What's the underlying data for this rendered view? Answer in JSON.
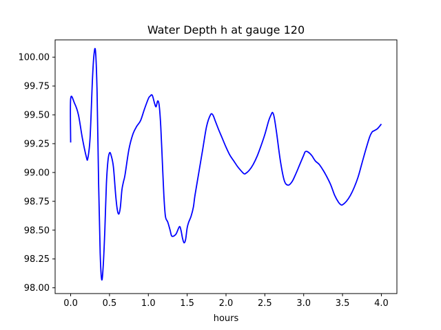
{
  "chart_data": {
    "type": "line",
    "title": "Water Depth h at gauge 120",
    "xlabel": "hours",
    "ylabel": "",
    "xlim": [
      -0.2,
      4.2
    ],
    "ylim": [
      97.95,
      100.15
    ],
    "xticks": [
      0.0,
      0.5,
      1.0,
      1.5,
      2.0,
      2.5,
      3.0,
      3.5,
      4.0
    ],
    "xtick_labels": [
      "0.0",
      "0.5",
      "1.0",
      "1.5",
      "2.0",
      "2.5",
      "3.0",
      "3.5",
      "4.0"
    ],
    "yticks": [
      98.0,
      98.25,
      98.5,
      98.75,
      99.0,
      99.25,
      99.5,
      99.75,
      100.0
    ],
    "ytick_labels": [
      "98.00",
      "98.25",
      "98.50",
      "98.75",
      "99.00",
      "99.25",
      "99.50",
      "99.75",
      "100.00"
    ],
    "grid": false,
    "series": [
      {
        "color": "#0000ff",
        "x": [
          0.0,
          0.0,
          0.05,
          0.1,
          0.15,
          0.2,
          0.22,
          0.25,
          0.28,
          0.3,
          0.32,
          0.34,
          0.36,
          0.38,
          0.4,
          0.42,
          0.44,
          0.46,
          0.48,
          0.5,
          0.52,
          0.55,
          0.58,
          0.6,
          0.62,
          0.64,
          0.66,
          0.68,
          0.7,
          0.75,
          0.8,
          0.85,
          0.9,
          0.95,
          1.0,
          1.02,
          1.05,
          1.08,
          1.1,
          1.12,
          1.14,
          1.16,
          1.18,
          1.2,
          1.22,
          1.25,
          1.28,
          1.3,
          1.33,
          1.36,
          1.4,
          1.42,
          1.44,
          1.46,
          1.48,
          1.5,
          1.52,
          1.55,
          1.58,
          1.6,
          1.65,
          1.7,
          1.75,
          1.8,
          1.83,
          1.86,
          1.9,
          1.95,
          2.0,
          2.05,
          2.1,
          2.15,
          2.2,
          2.23,
          2.25,
          2.3,
          2.35,
          2.4,
          2.45,
          2.5,
          2.55,
          2.58,
          2.6,
          2.62,
          2.65,
          2.7,
          2.75,
          2.8,
          2.85,
          2.9,
          2.95,
          3.0,
          3.02,
          3.05,
          3.1,
          3.15,
          3.2,
          3.25,
          3.3,
          3.35,
          3.4,
          3.45,
          3.48,
          3.5,
          3.55,
          3.6,
          3.65,
          3.7,
          3.75,
          3.8,
          3.85,
          3.88,
          3.9,
          3.95,
          4.0
        ],
        "y": [
          99.26,
          99.64,
          99.6,
          99.5,
          99.3,
          99.14,
          99.12,
          99.3,
          99.8,
          100.02,
          100.05,
          99.7,
          98.9,
          98.3,
          98.07,
          98.2,
          98.5,
          98.9,
          99.1,
          99.17,
          99.15,
          99.05,
          98.8,
          98.68,
          98.64,
          98.7,
          98.85,
          98.92,
          98.98,
          99.2,
          99.33,
          99.4,
          99.45,
          99.55,
          99.64,
          99.66,
          99.67,
          99.6,
          99.57,
          99.62,
          99.58,
          99.4,
          99.1,
          98.8,
          98.62,
          98.57,
          98.5,
          98.45,
          98.45,
          98.47,
          98.53,
          98.5,
          98.43,
          98.39,
          98.42,
          98.52,
          98.57,
          98.62,
          98.7,
          98.8,
          99.0,
          99.2,
          99.4,
          99.5,
          99.5,
          99.45,
          99.38,
          99.3,
          99.22,
          99.15,
          99.1,
          99.05,
          99.01,
          98.99,
          98.99,
          99.02,
          99.07,
          99.14,
          99.23,
          99.33,
          99.45,
          99.5,
          99.52,
          99.48,
          99.35,
          99.1,
          98.93,
          98.89,
          98.92,
          98.99,
          99.07,
          99.15,
          99.18,
          99.18,
          99.15,
          99.1,
          99.07,
          99.02,
          98.96,
          98.89,
          98.8,
          98.74,
          98.72,
          98.72,
          98.75,
          98.8,
          98.87,
          98.96,
          99.08,
          99.2,
          99.31,
          99.35,
          99.36,
          99.38,
          99.42
        ]
      }
    ]
  }
}
